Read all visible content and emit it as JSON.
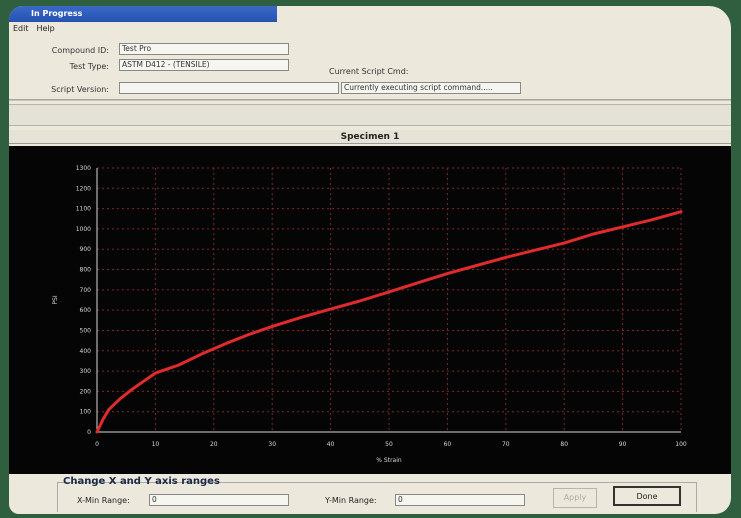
{
  "window": {
    "title": "In Progress"
  },
  "menu": {
    "items": [
      "Edit",
      "Help"
    ]
  },
  "form": {
    "compound_label": "Compound ID:",
    "compound_value": "Test Pro",
    "test_type_label": "Test Type:",
    "test_type_value": "ASTM D412 - (TENSILE)",
    "script_version_label": "Script Version:",
    "script_version_value": "",
    "current_cmd_label": "Current Script Cmd:",
    "current_cmd_value": "Currently executing script command....."
  },
  "specimen": {
    "title": "Specimen 1"
  },
  "chart_data": {
    "type": "line",
    "xlabel": "% Strain",
    "ylabel": "PSI",
    "xlim": [
      0,
      100
    ],
    "ylim": [
      0,
      1300
    ],
    "x_ticks": [
      "0",
      "10",
      "20",
      "30",
      "40",
      "50",
      "60",
      "70",
      "80",
      "90",
      "100"
    ],
    "y_ticks": [
      "0",
      "100",
      "200",
      "300",
      "400",
      "500",
      "600",
      "700",
      "800",
      "900",
      "1000",
      "1100",
      "1200",
      "1300"
    ],
    "grid": true,
    "colors": {
      "line": "#e02b2b",
      "grid": "#7a2a2a",
      "axis": "#d8d8d8",
      "background": "#050505"
    },
    "series": [
      {
        "x": [
          0,
          1,
          2,
          4,
          6,
          8,
          10,
          14,
          18,
          22,
          26,
          30,
          35,
          40,
          45,
          50,
          55,
          60,
          65,
          70,
          75,
          80,
          85,
          90,
          95,
          100
        ],
        "y": [
          0,
          60,
          110,
          165,
          210,
          250,
          290,
          330,
          385,
          435,
          480,
          520,
          565,
          605,
          645,
          690,
          735,
          780,
          820,
          860,
          895,
          930,
          975,
          1010,
          1045,
          1085
        ]
      }
    ]
  },
  "controls": {
    "title": "Change X and Y axis ranges",
    "x_range_label": "X-Min Range:",
    "x_range_value": "0",
    "y_range_label": "Y-Min Range:",
    "y_range_value": "0",
    "apply_label": "Apply",
    "done_label": "Done"
  }
}
